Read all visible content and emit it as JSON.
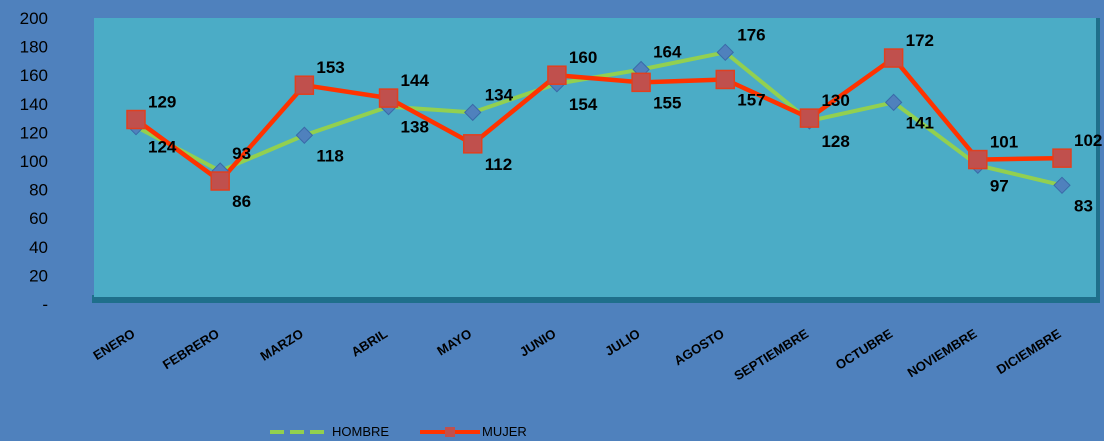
{
  "chart_data": {
    "type": "line",
    "title": "",
    "xlabel": "",
    "ylabel": "",
    "categories": [
      "ENERO",
      "FEBRERO",
      "MARZO",
      "ABRIL",
      "MAYO",
      "JUNIO",
      "JULIO",
      "AGOSTO",
      "SEPTIEMBRE",
      "OCTUBRE",
      "NOVIEMBRE",
      "DICIEMBRE"
    ],
    "ylim": [
      0,
      200
    ],
    "yticks": [
      "-",
      "20",
      "40",
      "60",
      "80",
      "100",
      "120",
      "140",
      "160",
      "180",
      "200"
    ],
    "legend_position": "bottom",
    "grid": false,
    "series": [
      {
        "name": "HOMBRE",
        "values": [
          124,
          93,
          118,
          138,
          134,
          154,
          164,
          176,
          128,
          141,
          97,
          83
        ],
        "labels": [
          "124",
          "93",
          "118",
          "138",
          "134",
          "154",
          "164",
          "176",
          "128",
          "141",
          "97",
          "83"
        ],
        "color": "#92d050",
        "marker": "diamond",
        "marker_color": "#4f81bd"
      },
      {
        "name": "MUJER",
        "values": [
          129,
          86,
          153,
          144,
          112,
          160,
          155,
          157,
          130,
          172,
          101,
          102
        ],
        "labels": [
          "129",
          "86",
          "153",
          "144",
          "112",
          "160",
          "155",
          "157",
          "130",
          "172",
          "101",
          "102"
        ],
        "color": "#ff3300",
        "marker": "square",
        "marker_color": "#c0504d"
      }
    ],
    "colors": {
      "background": "#4f81bd",
      "plot_area": "#4bacc6",
      "plot_shadow": "#1f6f8b"
    }
  }
}
